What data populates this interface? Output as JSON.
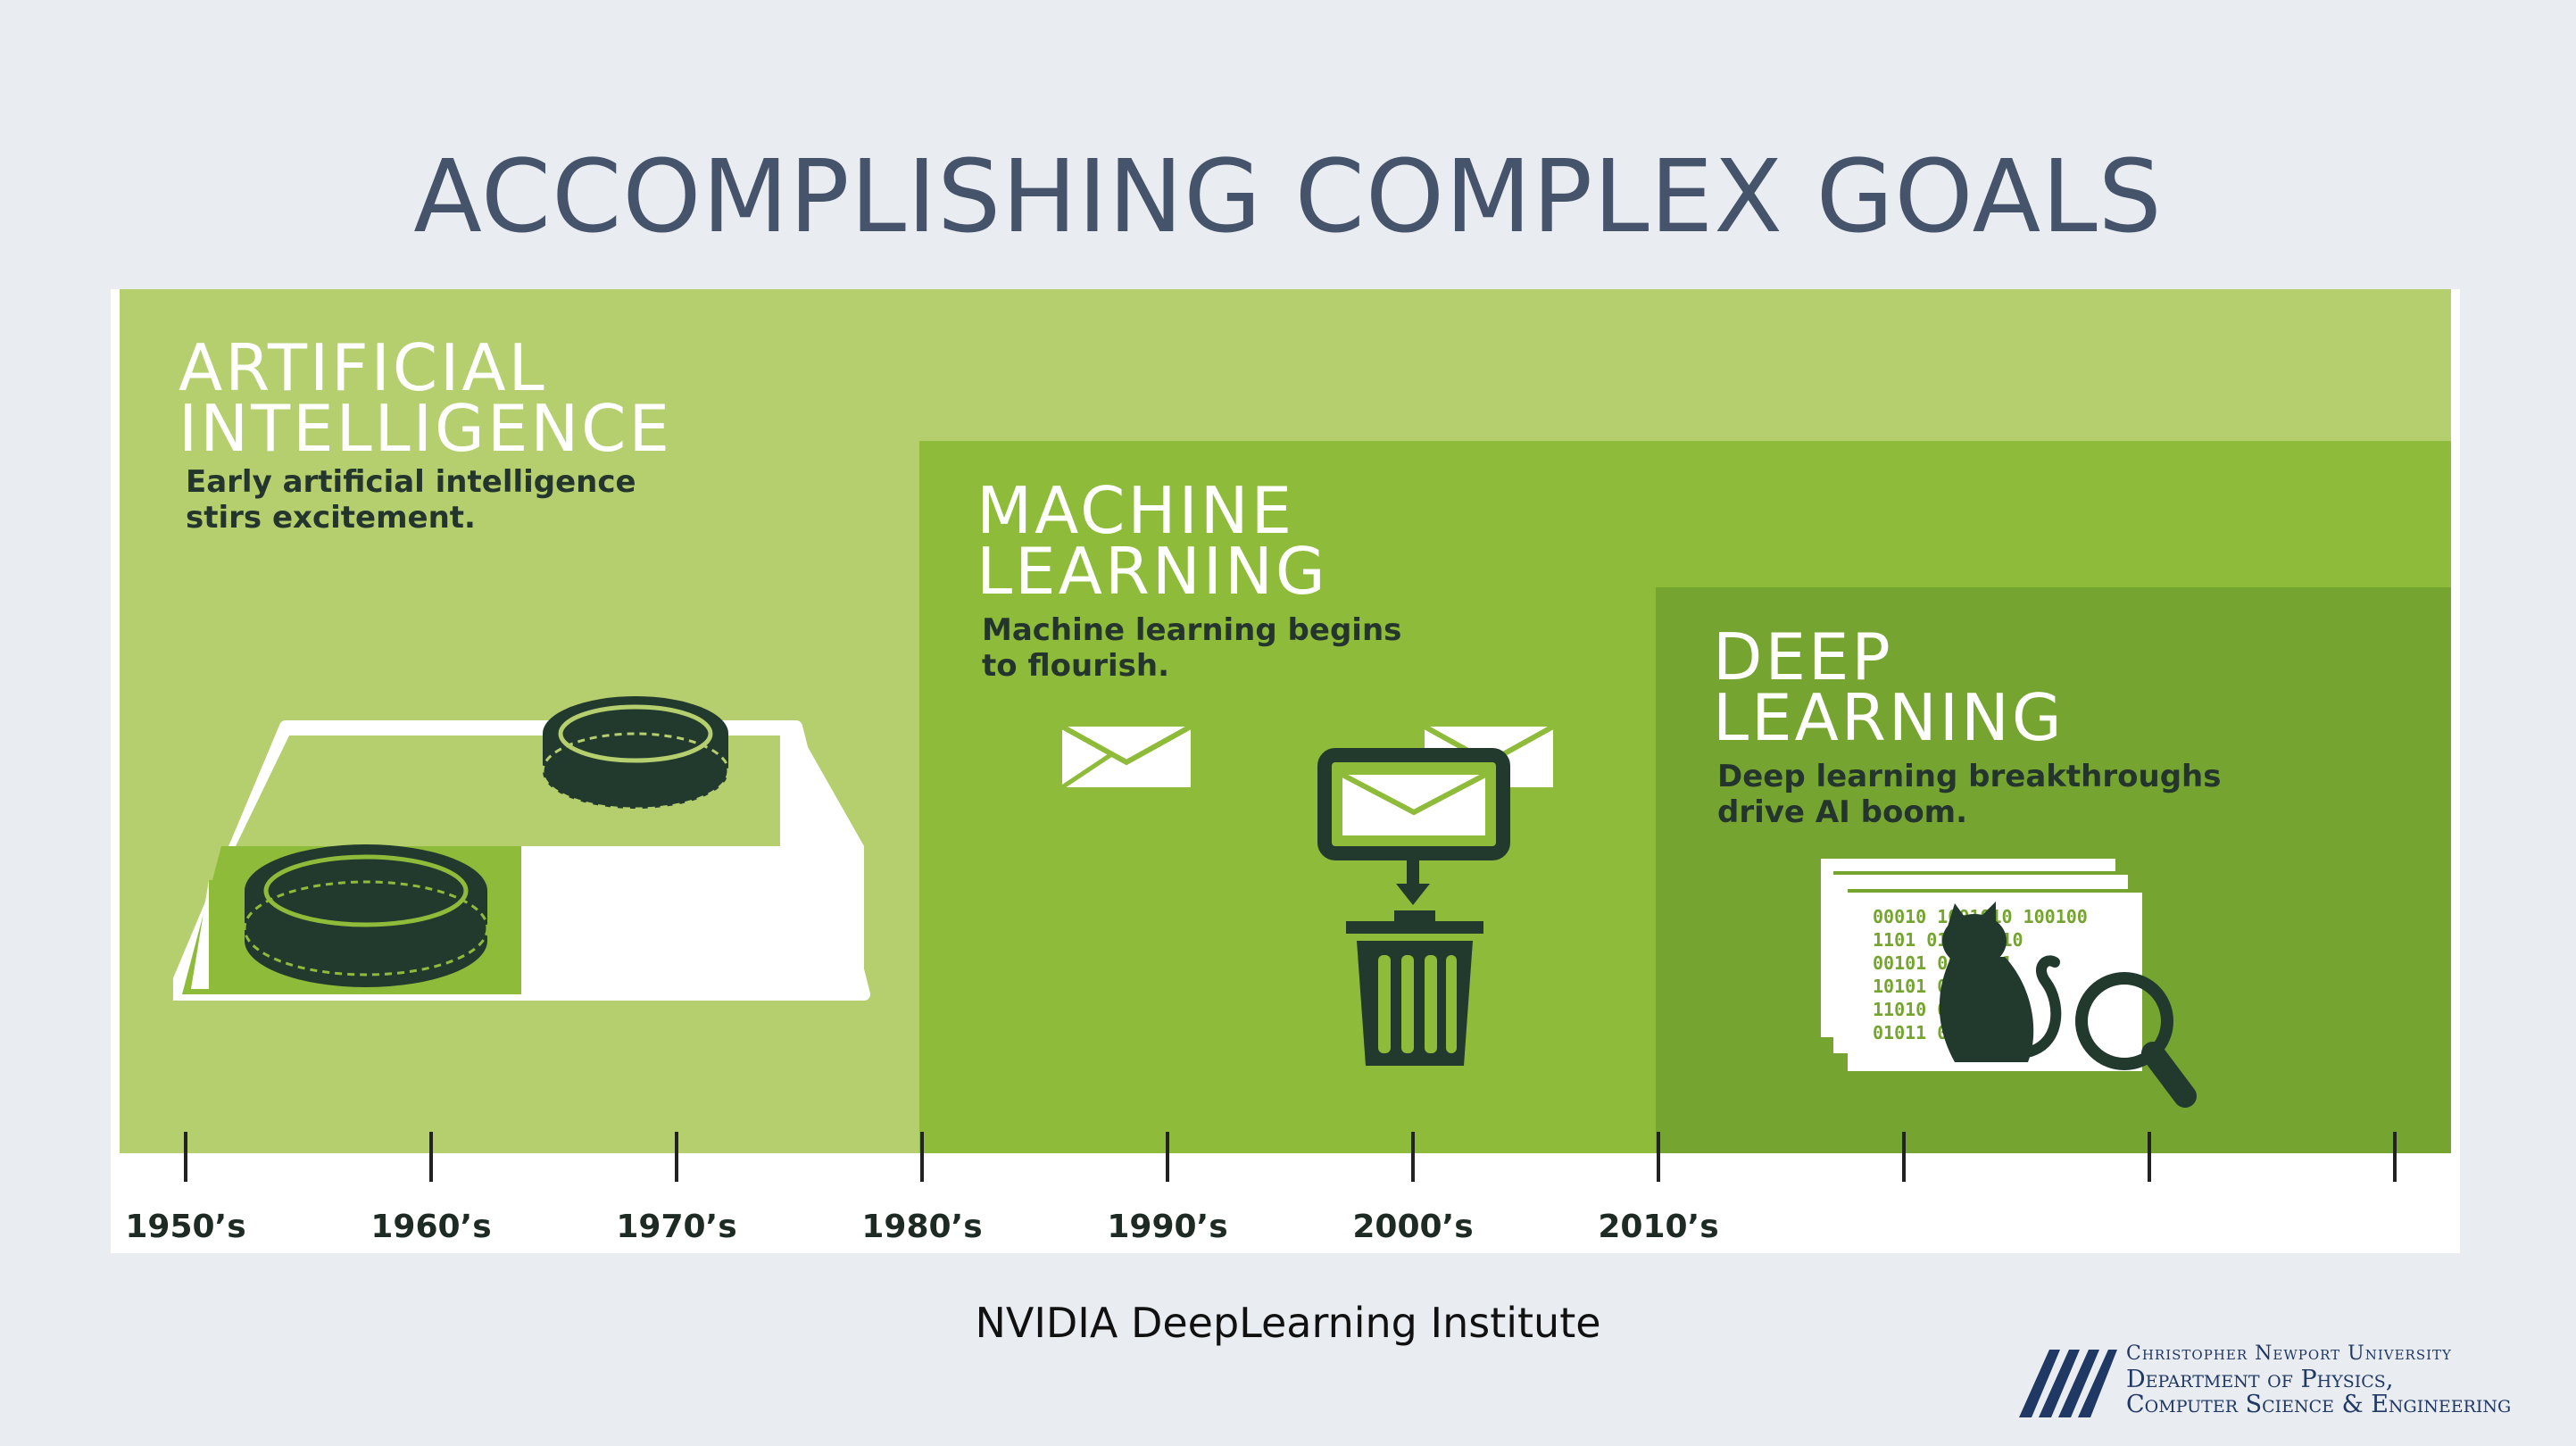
{
  "slide": {
    "title": "ACCOMPLISHING COMPLEX GOALS",
    "source": "NVIDIA DeepLearning Institute"
  },
  "infographic": {
    "stages": [
      {
        "heading": "ARTIFICIAL\nINTELLIGENCE",
        "description": "Early artificial intelligence\nstirs excitement.",
        "icon": "checkers-board-icon",
        "color": "#b5cf6f"
      },
      {
        "heading": "MACHINE\nLEARNING",
        "description": "Machine learning begins\nto flourish.",
        "icon": "spam-filter-icon",
        "color": "#8fbb3a"
      },
      {
        "heading": "DEEP\nLEARNING",
        "description": "Deep learning breakthroughs\ndrive AI boom.",
        "icon": "cat-recognition-icon",
        "color": "#76a431"
      }
    ],
    "binary_lines": [
      "00010 1001010  100100",
      "1101  0110   0110",
      "00101     0010111",
      "10101       010",
      "11010       010",
      "01011     010101"
    ],
    "timeline": {
      "labels": [
        "1950’s",
        "1960’s",
        "1970’s",
        "1980’s",
        "1990’s",
        "2000’s",
        "2010’s",
        "",
        "",
        ""
      ]
    }
  },
  "logo": {
    "line1": "Christopher Newport University",
    "line2": "Department of Physics,",
    "line3": "Computer Science & Engineering"
  },
  "colors": {
    "title": "#46546b",
    "dark_icon": "#22392e",
    "logo": "#1f3864"
  }
}
